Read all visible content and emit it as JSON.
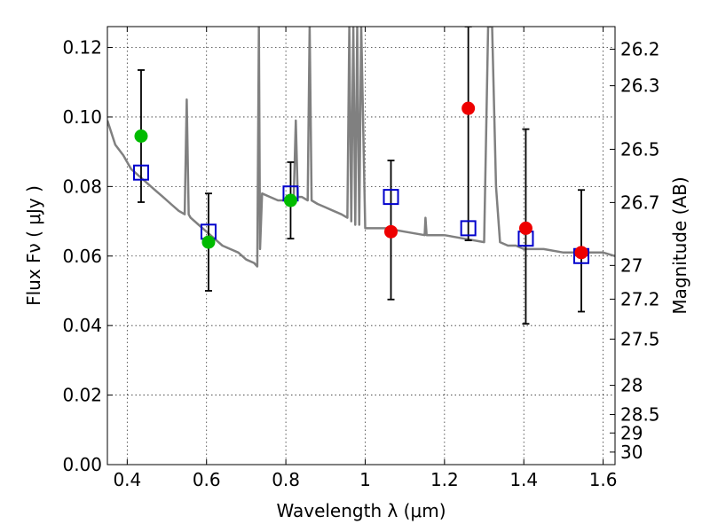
{
  "chart_data": {
    "type": "scatter",
    "xlabel": "Wavelength  λ (μm)",
    "ylabel": "Flux  Fν  ( μJy )",
    "ylabel_right": "Magnitude (AB)",
    "xlim": [
      0.35,
      1.63
    ],
    "ylim": [
      0.0,
      0.126
    ],
    "x_ticks": [
      0.4,
      0.6,
      0.8,
      1.0,
      1.2,
      1.4,
      1.6
    ],
    "x_tick_labels": [
      "0.4",
      "0.6",
      "0.8",
      "1",
      "1.2",
      "1.4",
      "1.6"
    ],
    "y_ticks": [
      0.0,
      0.02,
      0.04,
      0.06,
      0.08,
      0.1,
      0.12
    ],
    "y_tick_labels": [
      "0.00",
      "0.02",
      "0.04",
      "0.06",
      "0.08",
      "0.10",
      "0.12"
    ],
    "right_ticks": [
      {
        "label": "26.2",
        "flux": 0.1195
      },
      {
        "label": "26.3",
        "flux": 0.109
      },
      {
        "label": "26.5",
        "flux": 0.0907
      },
      {
        "label": "26.7",
        "flux": 0.0754
      },
      {
        "label": "27",
        "flux": 0.0573
      },
      {
        "label": "27.2",
        "flux": 0.0476
      },
      {
        "label": "27.5",
        "flux": 0.0361
      },
      {
        "label": "28",
        "flux": 0.0228
      },
      {
        "label": "28.5",
        "flux": 0.0144
      },
      {
        "label": "29",
        "flux": 0.0091
      },
      {
        "label": "30",
        "flux": 0.0036
      }
    ],
    "grid": true,
    "colors": {
      "spectrum": "#808080",
      "model_marker": "#0000cc",
      "green_points": "#00bb00",
      "red_points": "#ee0000",
      "errorbar": "#000000"
    },
    "spectrum": {
      "x": [
        0.35,
        0.37,
        0.39,
        0.41,
        0.43,
        0.45,
        0.47,
        0.49,
        0.51,
        0.53,
        0.545,
        0.55,
        0.555,
        0.56,
        0.58,
        0.6,
        0.62,
        0.64,
        0.66,
        0.68,
        0.7,
        0.72,
        0.728,
        0.732,
        0.735,
        0.74,
        0.76,
        0.78,
        0.8,
        0.82,
        0.825,
        0.83,
        0.84,
        0.855,
        0.86,
        0.865,
        0.88,
        0.9,
        0.92,
        0.94,
        0.955,
        0.96,
        0.965,
        0.97,
        0.975,
        0.98,
        0.985,
        0.99,
        1.0,
        1.05,
        1.1,
        1.15,
        1.152,
        1.155,
        1.2,
        1.25,
        1.3,
        1.31,
        1.32,
        1.33,
        1.34,
        1.36,
        1.38,
        1.4,
        1.45,
        1.5,
        1.55,
        1.6,
        1.63
      ],
      "y": [
        0.099,
        0.092,
        0.089,
        0.085,
        0.083,
        0.081,
        0.079,
        0.077,
        0.075,
        0.073,
        0.072,
        0.105,
        0.072,
        0.071,
        0.069,
        0.067,
        0.065,
        0.063,
        0.062,
        0.061,
        0.059,
        0.058,
        0.057,
        0.126,
        0.062,
        0.078,
        0.077,
        0.076,
        0.076,
        0.077,
        0.099,
        0.077,
        0.077,
        0.076,
        0.126,
        0.076,
        0.075,
        0.074,
        0.073,
        0.072,
        0.071,
        0.126,
        0.07,
        0.126,
        0.069,
        0.126,
        0.069,
        0.126,
        0.068,
        0.068,
        0.067,
        0.066,
        0.071,
        0.066,
        0.066,
        0.065,
        0.064,
        0.126,
        0.126,
        0.08,
        0.064,
        0.063,
        0.063,
        0.062,
        0.062,
        0.061,
        0.061,
        0.061,
        0.06
      ]
    },
    "model_points": {
      "x": [
        0.435,
        0.605,
        0.812,
        1.065,
        1.26,
        1.405,
        1.545
      ],
      "y": [
        0.084,
        0.067,
        0.078,
        0.077,
        0.068,
        0.065,
        0.06
      ]
    },
    "observed_green": {
      "x": [
        0.435,
        0.605,
        0.812
      ],
      "y": [
        0.0945,
        0.064,
        0.076
      ],
      "err_low": [
        0.019,
        0.014,
        0.011
      ],
      "err_high": [
        0.019,
        0.014,
        0.011
      ]
    },
    "observed_red": {
      "x": [
        1.065,
        1.26,
        1.405,
        1.545
      ],
      "y": [
        0.067,
        0.1025,
        0.068,
        0.061
      ],
      "err_low": [
        0.0195,
        0.038,
        0.0275,
        0.017
      ],
      "err_high": [
        0.0205,
        0.0235,
        0.0285,
        0.018
      ]
    }
  }
}
